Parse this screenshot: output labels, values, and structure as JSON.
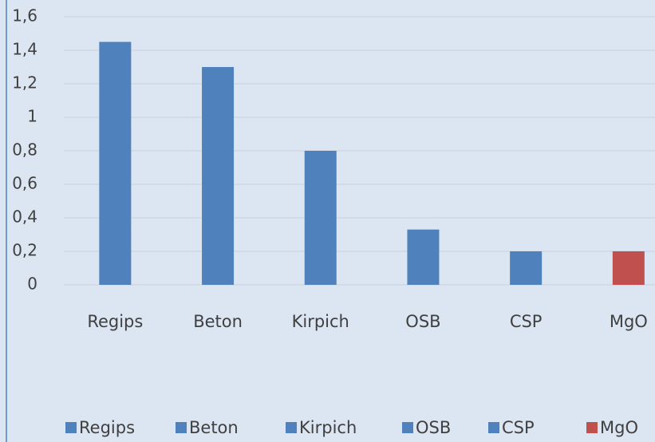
{
  "chart_data": {
    "type": "bar",
    "categories": [
      "Regips",
      "Beton",
      "Kirpich",
      "OSB",
      "CSP",
      "MgO"
    ],
    "values": [
      1.45,
      1.3,
      0.8,
      0.33,
      0.2,
      0.2
    ],
    "colors": [
      "#4f81bd",
      "#4f81bd",
      "#4f81bd",
      "#4f81bd",
      "#4f81bd",
      "#c0504d"
    ],
    "ylim": [
      0,
      1.6
    ],
    "yticks": [
      0,
      {
        "value": 0.2,
        "label": "0,2"
      },
      {
        "value": 0.4,
        "label": "0,4"
      },
      {
        "value": 0.6,
        "label": "0,6"
      },
      {
        "value": 0.8,
        "label": "0,8"
      },
      1,
      {
        "value": 1.2,
        "label": "1,2"
      },
      {
        "value": 1.4,
        "label": "1,4"
      },
      {
        "value": 1.6,
        "label": "1,6"
      }
    ],
    "grid": true,
    "legend": "bottom"
  }
}
